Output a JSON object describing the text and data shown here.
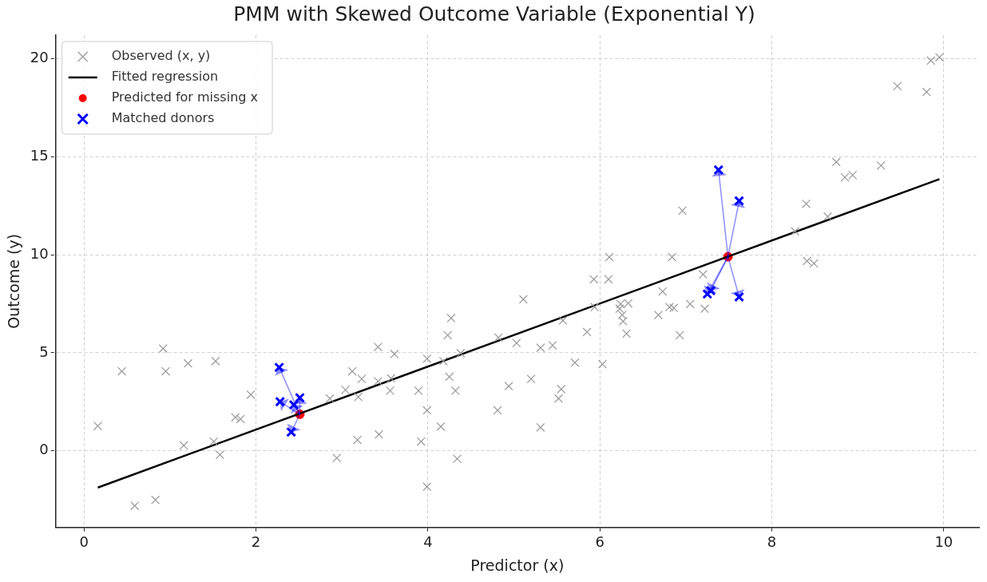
{
  "chart_data": {
    "type": "scatter",
    "title": "PMM with Skewed Outcome Variable (Exponential Y)",
    "xlabel": "Predictor (x)",
    "ylabel": "Outcome (y)",
    "xlim": [
      -0.33,
      10.41
    ],
    "ylim": [
      -3.9,
      21.2
    ],
    "xticks": [
      0,
      2,
      4,
      6,
      8,
      10
    ],
    "yticks": [
      0,
      5,
      10,
      15,
      20
    ],
    "grid": true,
    "legend": "top left",
    "series": [
      {
        "name": "Observed (x, y)",
        "marker": "cross",
        "color": "#999999",
        "x": [
          0.16,
          0.44,
          0.59,
          0.83,
          0.92,
          0.95,
          1.16,
          1.21,
          1.51,
          1.53,
          1.58,
          1.76,
          1.82,
          1.94,
          2.86,
          2.94,
          3.04,
          3.12,
          3.23,
          3.18,
          3.19,
          3.42,
          3.61,
          3.42,
          3.57,
          3.56,
          3.43,
          3.89,
          3.99,
          3.99,
          3.92,
          3.99,
          4.15,
          4.18,
          4.25,
          4.23,
          4.27,
          4.32,
          4.34,
          4.38,
          4.81,
          4.82,
          4.94,
          5.03,
          5.11,
          5.2,
          5.31,
          5.31,
          5.45,
          5.52,
          5.55,
          5.57,
          5.71,
          5.85,
          5.93,
          5.94,
          6.03,
          6.1,
          6.11,
          6.24,
          6.23,
          6.26,
          6.27,
          6.31,
          6.33,
          6.68,
          6.73,
          6.81,
          6.86,
          6.93,
          6.84,
          6.96,
          7.05,
          7.2,
          7.22,
          8.27,
          8.4,
          8.41,
          8.49,
          8.65,
          8.75,
          8.85,
          8.94,
          9.27,
          9.46,
          9.8,
          9.85,
          9.95
        ],
        "values": [
          1.27,
          4.06,
          -2.8,
          -2.5,
          5.22,
          4.06,
          0.28,
          4.46,
          0.48,
          4.58,
          -0.2,
          1.71,
          1.63,
          2.87,
          2.67,
          -0.36,
          3.11,
          4.06,
          3.67,
          0.56,
          2.75,
          5.3,
          4.94,
          3.55,
          3.7,
          3.07,
          0.84,
          3.07,
          4.7,
          2.07,
          0.48,
          -1.83,
          1.24,
          4.58,
          3.78,
          5.9,
          6.77,
          3.07,
          -0.4,
          4.98,
          2.07,
          5.78,
          3.3,
          5.5,
          7.73,
          3.67,
          5.26,
          1.2,
          5.38,
          2.67,
          3.15,
          6.65,
          4.5,
          6.06,
          8.75,
          7.33,
          4.42,
          8.75,
          9.88,
          7.49,
          7.25,
          6.93,
          6.61,
          5.98,
          7.53,
          6.93,
          8.13,
          7.33,
          7.29,
          5.9,
          9.88,
          12.25,
          7.49,
          9.0,
          7.25,
          11.2,
          12.6,
          9.68,
          9.56,
          11.95,
          14.73,
          13.95,
          14.06,
          14.55,
          18.6,
          18.3,
          19.9,
          20.07
        ]
      },
      {
        "name": "Fitted regression",
        "type": "line",
        "color": "#000000",
        "line_style": "solid",
        "marker": "none",
        "x": [
          0.16,
          9.95
        ],
        "values": [
          -1.87,
          13.86
        ]
      },
      {
        "name": "Predicted for missing x",
        "marker": "circle",
        "color": "#ff0000",
        "x": [
          2.51,
          7.49
        ],
        "values": [
          1.87,
          9.9
        ]
      },
      {
        "name": "Matched donors",
        "marker": "cross",
        "color": "#0000ff",
        "x": [
          2.27,
          2.28,
          2.44,
          2.51,
          2.41,
          7.38,
          7.62,
          7.25,
          7.29,
          7.62
        ],
        "values": [
          4.26,
          2.51,
          2.35,
          2.71,
          0.96,
          14.33,
          12.75,
          8.0,
          8.17,
          7.85
        ]
      }
    ]
  }
}
